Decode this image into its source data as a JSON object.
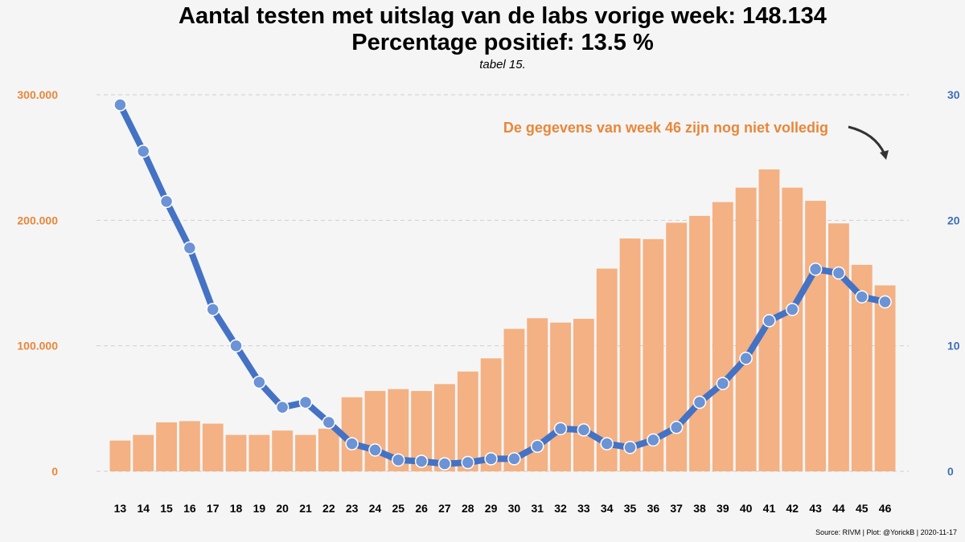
{
  "chart_data": {
    "type": "bar+line",
    "title_line1": "Aantal testen met uitslag van de labs vorige week: 148.134",
    "title_line2": "Percentage positief: 13.5 %",
    "subtitle": "tabel 15.",
    "annotation": "De gegevens van week 46 zijn nog niet volledig",
    "source": "Source: RIVM | Plot: @YorickB |  2020-11-17",
    "colors": {
      "bar": "#f4b183",
      "line": "#4472c4",
      "marker": "#6b93d6",
      "left_axis": "#e8873a",
      "right_axis": "#3f6fb8",
      "grid": "#cfcfcf"
    },
    "categories": [
      "13",
      "14",
      "15",
      "16",
      "17",
      "18",
      "19",
      "20",
      "21",
      "22",
      "23",
      "24",
      "25",
      "26",
      "27",
      "28",
      "29",
      "30",
      "31",
      "32",
      "33",
      "34",
      "35",
      "36",
      "37",
      "38",
      "39",
      "40",
      "41",
      "42",
      "43",
      "44",
      "45",
      "46"
    ],
    "left_axis": {
      "ylim": [
        0,
        300000
      ],
      "ticks": [
        0,
        100000,
        200000,
        300000
      ],
      "tick_labels": [
        "0",
        "100.000",
        "200.000",
        "300.000"
      ]
    },
    "right_axis": {
      "ylim": [
        0,
        30
      ],
      "ticks": [
        0,
        10,
        20,
        30
      ],
      "tick_labels": [
        "0",
        "10",
        "20",
        "30"
      ]
    },
    "series": [
      {
        "name": "Aantal testen",
        "axis": "left",
        "kind": "bar",
        "values": [
          24500,
          29000,
          39000,
          40000,
          38000,
          29000,
          29000,
          32500,
          29000,
          34000,
          59000,
          64000,
          65500,
          64000,
          69500,
          79500,
          90000,
          113500,
          122000,
          118500,
          121500,
          161500,
          185500,
          185000,
          198000,
          203500,
          214500,
          226000,
          240500,
          226000,
          215500,
          197500,
          164500,
          148134
        ]
      },
      {
        "name": "Percentage positief",
        "axis": "right",
        "kind": "line",
        "values": [
          29.2,
          25.5,
          21.5,
          17.8,
          12.9,
          10.0,
          7.1,
          5.1,
          5.5,
          3.9,
          2.2,
          1.7,
          0.9,
          0.8,
          0.6,
          0.7,
          1.0,
          1.0,
          2.0,
          3.4,
          3.3,
          2.2,
          1.9,
          2.5,
          3.5,
          5.5,
          7.0,
          9.0,
          12.0,
          12.9,
          16.1,
          15.8,
          13.9,
          13.5
        ]
      }
    ]
  }
}
